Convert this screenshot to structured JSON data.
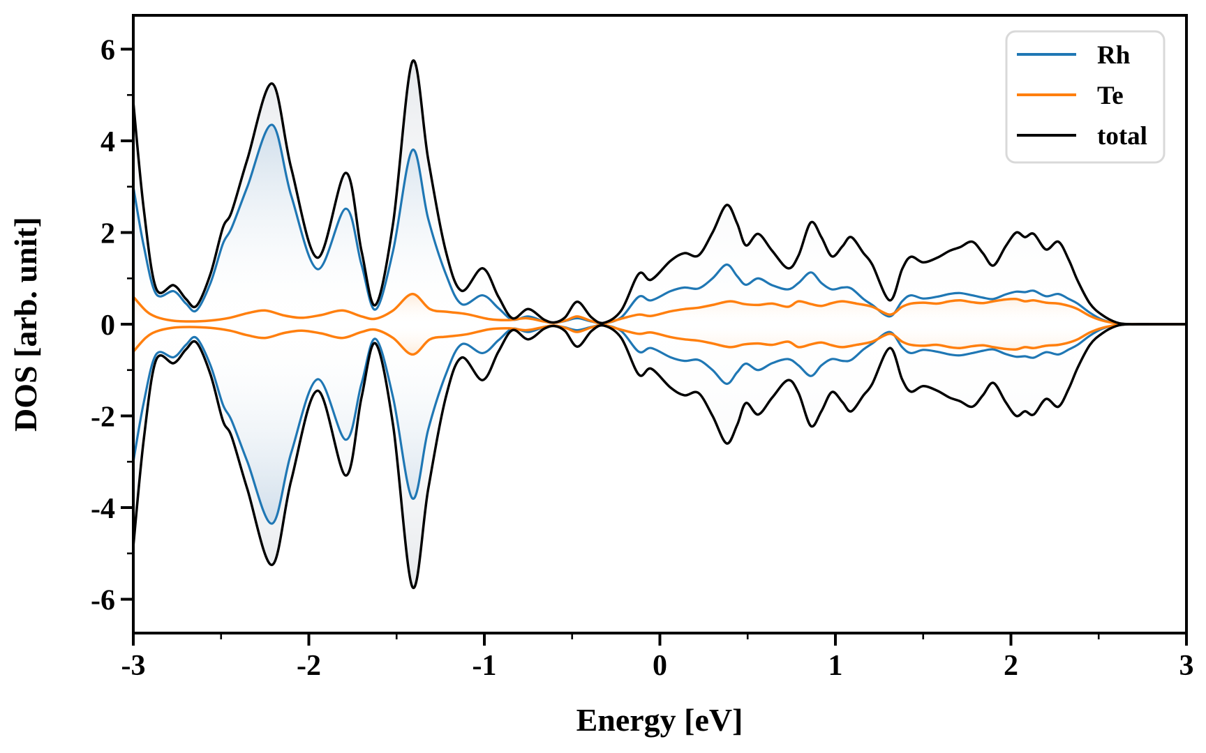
{
  "chart_data": {
    "type": "area",
    "title": "",
    "xlabel": "Energy [eV]",
    "ylabel": "DOS [arb. unit]",
    "xlim": [
      -3,
      3
    ],
    "ylim": [
      -6.7,
      6.7
    ],
    "x_major_ticks": [
      -3,
      -2,
      -1,
      0,
      1,
      2,
      3
    ],
    "x_tick_labels": [
      "-3",
      "-2",
      "-1",
      "0",
      "1",
      "2",
      "3"
    ],
    "x_minor_step": 0.5,
    "y_major_ticks": [
      -6,
      -4,
      -2,
      0,
      2,
      4,
      6
    ],
    "y_tick_labels": [
      "-6",
      "-4",
      "-2",
      "0",
      "2",
      "4",
      "6"
    ],
    "y_minor_step": 1,
    "grid": false,
    "mirrored": true,
    "legend_position": "upper right",
    "legend_border_color": "#d9d9d9",
    "series": [
      {
        "name": "Rh",
        "color": "#1f77b4",
        "fill_color": "#9fc0dd",
        "fill_opacity": 0.45,
        "fill_extent": 4.6,
        "line_width": 3.2,
        "points": [
          [
            -3.0,
            3.0
          ],
          [
            -2.94,
            1.7
          ],
          [
            -2.87,
            0.66
          ],
          [
            -2.77,
            0.72
          ],
          [
            -2.7,
            0.45
          ],
          [
            -2.64,
            0.3
          ],
          [
            -2.56,
            0.9
          ],
          [
            -2.49,
            1.75
          ],
          [
            -2.44,
            2.1
          ],
          [
            -2.35,
            3.0
          ],
          [
            -2.21,
            4.35
          ],
          [
            -2.1,
            2.8
          ],
          [
            -1.95,
            1.2
          ],
          [
            -1.79,
            2.52
          ],
          [
            -1.7,
            1.3
          ],
          [
            -1.62,
            0.32
          ],
          [
            -1.52,
            1.6
          ],
          [
            -1.41,
            3.8
          ],
          [
            -1.32,
            2.3
          ],
          [
            -1.22,
            1.1
          ],
          [
            -1.13,
            0.44
          ],
          [
            -1.01,
            0.63
          ],
          [
            -0.92,
            0.35
          ],
          [
            -0.84,
            0.1
          ],
          [
            -0.75,
            0.17
          ],
          [
            -0.66,
            0.06
          ],
          [
            -0.6,
            0.03
          ],
          [
            -0.54,
            0.07
          ],
          [
            -0.47,
            0.13
          ],
          [
            -0.39,
            0.06
          ],
          [
            -0.32,
            0.02
          ],
          [
            -0.22,
            0.15
          ],
          [
            -0.12,
            0.6
          ],
          [
            -0.05,
            0.52
          ],
          [
            0.06,
            0.72
          ],
          [
            0.14,
            0.8
          ],
          [
            0.22,
            0.78
          ],
          [
            0.3,
            1.0
          ],
          [
            0.38,
            1.3
          ],
          [
            0.44,
            1.05
          ],
          [
            0.49,
            0.86
          ],
          [
            0.56,
            1.0
          ],
          [
            0.64,
            0.85
          ],
          [
            0.73,
            0.76
          ],
          [
            0.79,
            0.9
          ],
          [
            0.86,
            1.13
          ],
          [
            0.92,
            0.9
          ],
          [
            0.98,
            0.76
          ],
          [
            1.04,
            0.8
          ],
          [
            1.09,
            0.78
          ],
          [
            1.16,
            0.55
          ],
          [
            1.21,
            0.42
          ],
          [
            1.31,
            0.17
          ],
          [
            1.38,
            0.5
          ],
          [
            1.43,
            0.63
          ],
          [
            1.5,
            0.56
          ],
          [
            1.58,
            0.6
          ],
          [
            1.65,
            0.66
          ],
          [
            1.71,
            0.68
          ],
          [
            1.78,
            0.63
          ],
          [
            1.84,
            0.58
          ],
          [
            1.9,
            0.55
          ],
          [
            1.97,
            0.65
          ],
          [
            2.03,
            0.71
          ],
          [
            2.08,
            0.7
          ],
          [
            2.13,
            0.73
          ],
          [
            2.2,
            0.61
          ],
          [
            2.27,
            0.66
          ],
          [
            2.33,
            0.55
          ],
          [
            2.38,
            0.45
          ],
          [
            2.45,
            0.25
          ],
          [
            2.52,
            0.1
          ],
          [
            2.6,
            0.02
          ],
          [
            2.68,
            0.0
          ],
          [
            2.84,
            0.0
          ],
          [
            3.0,
            0.0
          ]
        ]
      },
      {
        "name": "Te",
        "color": "#ff7f0e",
        "fill_color": "#ffbf80",
        "fill_opacity": 0.55,
        "fill_extent": 0.9,
        "line_width": 3.5,
        "points": [
          [
            -3.0,
            0.6
          ],
          [
            -2.93,
            0.3
          ],
          [
            -2.87,
            0.16
          ],
          [
            -2.78,
            0.08
          ],
          [
            -2.68,
            0.06
          ],
          [
            -2.56,
            0.08
          ],
          [
            -2.45,
            0.14
          ],
          [
            -2.35,
            0.24
          ],
          [
            -2.25,
            0.3
          ],
          [
            -2.14,
            0.19
          ],
          [
            -2.04,
            0.14
          ],
          [
            -1.93,
            0.2
          ],
          [
            -1.81,
            0.3
          ],
          [
            -1.7,
            0.17
          ],
          [
            -1.62,
            0.12
          ],
          [
            -1.52,
            0.3
          ],
          [
            -1.41,
            0.66
          ],
          [
            -1.31,
            0.33
          ],
          [
            -1.21,
            0.27
          ],
          [
            -1.1,
            0.22
          ],
          [
            -0.97,
            0.11
          ],
          [
            -0.86,
            0.09
          ],
          [
            -0.76,
            0.13
          ],
          [
            -0.66,
            0.06
          ],
          [
            -0.6,
            0.03
          ],
          [
            -0.53,
            0.09
          ],
          [
            -0.47,
            0.17
          ],
          [
            -0.39,
            0.07
          ],
          [
            -0.32,
            0.02
          ],
          [
            -0.22,
            0.12
          ],
          [
            -0.12,
            0.21
          ],
          [
            -0.05,
            0.18
          ],
          [
            0.06,
            0.28
          ],
          [
            0.14,
            0.33
          ],
          [
            0.22,
            0.36
          ],
          [
            0.3,
            0.42
          ],
          [
            0.4,
            0.5
          ],
          [
            0.48,
            0.44
          ],
          [
            0.56,
            0.42
          ],
          [
            0.64,
            0.45
          ],
          [
            0.73,
            0.38
          ],
          [
            0.79,
            0.5
          ],
          [
            0.86,
            0.44
          ],
          [
            0.92,
            0.4
          ],
          [
            0.98,
            0.46
          ],
          [
            1.04,
            0.5
          ],
          [
            1.12,
            0.45
          ],
          [
            1.21,
            0.38
          ],
          [
            1.31,
            0.21
          ],
          [
            1.38,
            0.38
          ],
          [
            1.43,
            0.45
          ],
          [
            1.5,
            0.47
          ],
          [
            1.58,
            0.45
          ],
          [
            1.65,
            0.5
          ],
          [
            1.71,
            0.52
          ],
          [
            1.78,
            0.48
          ],
          [
            1.84,
            0.46
          ],
          [
            1.9,
            0.5
          ],
          [
            1.97,
            0.54
          ],
          [
            2.03,
            0.55
          ],
          [
            2.08,
            0.5
          ],
          [
            2.13,
            0.52
          ],
          [
            2.2,
            0.47
          ],
          [
            2.27,
            0.45
          ],
          [
            2.33,
            0.4
          ],
          [
            2.38,
            0.33
          ],
          [
            2.45,
            0.18
          ],
          [
            2.52,
            0.08
          ],
          [
            2.6,
            0.02
          ],
          [
            2.68,
            0.0
          ],
          [
            2.84,
            0.0
          ],
          [
            3.0,
            0.0
          ]
        ]
      },
      {
        "name": "total",
        "color": "#000000",
        "fill_color": "#c9cfd6",
        "fill_opacity": 0.55,
        "fill_extent": 6.2,
        "line_width": 3.5,
        "points": [
          [
            -3.0,
            4.85
          ],
          [
            -2.94,
            2.5
          ],
          [
            -2.87,
            0.78
          ],
          [
            -2.77,
            0.85
          ],
          [
            -2.7,
            0.55
          ],
          [
            -2.64,
            0.4
          ],
          [
            -2.56,
            1.1
          ],
          [
            -2.49,
            2.1
          ],
          [
            -2.44,
            2.45
          ],
          [
            -2.35,
            3.6
          ],
          [
            -2.21,
            5.25
          ],
          [
            -2.1,
            3.4
          ],
          [
            -1.95,
            1.45
          ],
          [
            -1.79,
            3.3
          ],
          [
            -1.7,
            1.6
          ],
          [
            -1.62,
            0.42
          ],
          [
            -1.52,
            2.2
          ],
          [
            -1.41,
            5.73
          ],
          [
            -1.32,
            3.6
          ],
          [
            -1.22,
            1.6
          ],
          [
            -1.13,
            0.73
          ],
          [
            -1.01,
            1.22
          ],
          [
            -0.92,
            0.6
          ],
          [
            -0.84,
            0.13
          ],
          [
            -0.75,
            0.33
          ],
          [
            -0.66,
            0.1
          ],
          [
            -0.6,
            0.04
          ],
          [
            -0.54,
            0.15
          ],
          [
            -0.47,
            0.49
          ],
          [
            -0.39,
            0.15
          ],
          [
            -0.32,
            0.03
          ],
          [
            -0.22,
            0.3
          ],
          [
            -0.12,
            1.1
          ],
          [
            -0.05,
            0.97
          ],
          [
            0.06,
            1.38
          ],
          [
            0.14,
            1.55
          ],
          [
            0.22,
            1.5
          ],
          [
            0.3,
            2.0
          ],
          [
            0.38,
            2.6
          ],
          [
            0.44,
            2.2
          ],
          [
            0.49,
            1.72
          ],
          [
            0.56,
            1.97
          ],
          [
            0.64,
            1.6
          ],
          [
            0.73,
            1.22
          ],
          [
            0.79,
            1.5
          ],
          [
            0.86,
            2.22
          ],
          [
            0.92,
            1.9
          ],
          [
            0.98,
            1.48
          ],
          [
            1.04,
            1.7
          ],
          [
            1.09,
            1.9
          ],
          [
            1.16,
            1.55
          ],
          [
            1.21,
            1.3
          ],
          [
            1.31,
            0.52
          ],
          [
            1.38,
            1.2
          ],
          [
            1.43,
            1.47
          ],
          [
            1.5,
            1.35
          ],
          [
            1.58,
            1.45
          ],
          [
            1.65,
            1.6
          ],
          [
            1.71,
            1.68
          ],
          [
            1.78,
            1.8
          ],
          [
            1.84,
            1.55
          ],
          [
            1.9,
            1.28
          ],
          [
            1.97,
            1.7
          ],
          [
            2.03,
            2.0
          ],
          [
            2.08,
            1.9
          ],
          [
            2.13,
            1.97
          ],
          [
            2.2,
            1.63
          ],
          [
            2.27,
            1.8
          ],
          [
            2.33,
            1.4
          ],
          [
            2.38,
            0.95
          ],
          [
            2.45,
            0.45
          ],
          [
            2.52,
            0.2
          ],
          [
            2.6,
            0.04
          ],
          [
            2.68,
            0.0
          ],
          [
            2.84,
            0.0
          ],
          [
            3.0,
            0.0
          ]
        ]
      }
    ]
  }
}
